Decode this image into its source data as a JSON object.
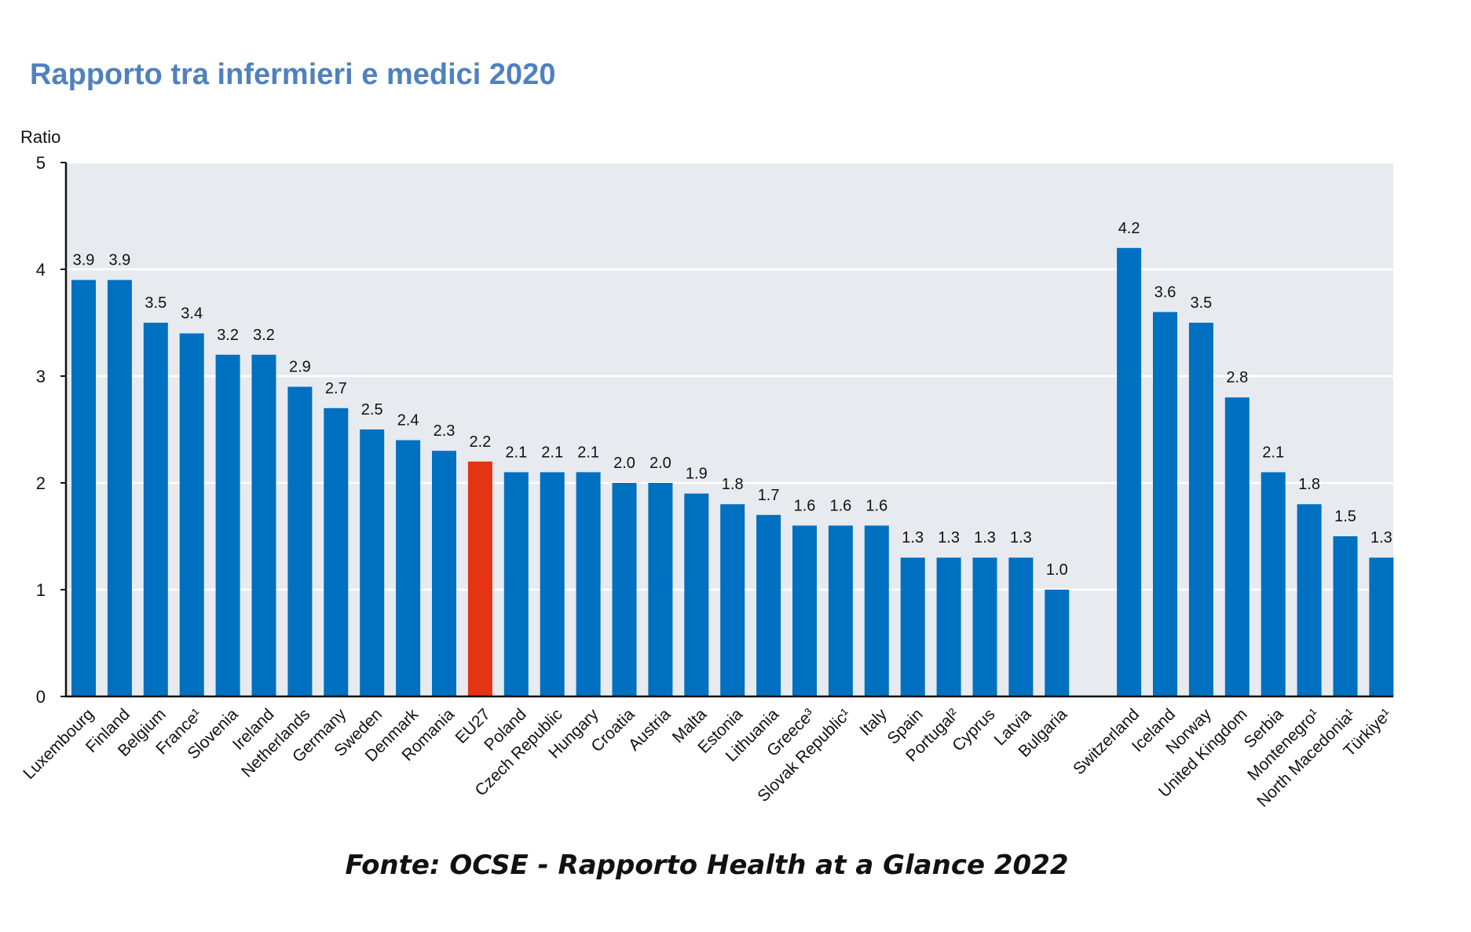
{
  "chart_data": {
    "type": "bar",
    "title": "Rapporto tra infermieri e medici 2020",
    "ylabel": "Ratio",
    "xlabel": "",
    "ylim": [
      0,
      5
    ],
    "yticks": [
      "0",
      "1",
      "2",
      "3",
      "4",
      "5"
    ],
    "grid": true,
    "groups": [
      {
        "categories": [
          "Luxembourg",
          "Finland",
          "Belgium",
          "France¹",
          "Slovenia",
          "Ireland",
          "Netherlands",
          "Germany",
          "Sweden",
          "Denmark",
          "Romania",
          "EU27",
          "Poland",
          "Czech Republic",
          "Hungary",
          "Croatia",
          "Austria",
          "Malta",
          "Estonia",
          "Lithuania",
          "Greece³",
          "Slovak Republic¹",
          "Italy",
          "Spain",
          "Portugal²",
          "Cyprus",
          "Latvia",
          "Bulgaria"
        ],
        "values": [
          3.9,
          3.9,
          3.5,
          3.4,
          3.2,
          3.2,
          2.9,
          2.7,
          2.5,
          2.4,
          2.3,
          2.2,
          2.1,
          2.1,
          2.1,
          2.0,
          2.0,
          1.9,
          1.8,
          1.7,
          1.6,
          1.6,
          1.6,
          1.3,
          1.3,
          1.3,
          1.3,
          1.0
        ],
        "value_labels": [
          "3.9",
          "3.9",
          "3.5",
          "3.4",
          "3.2",
          "3.2",
          "2.9",
          "2.7",
          "2.5",
          "2.4",
          "2.3",
          "2.2",
          "2.1",
          "2.1",
          "2.1",
          "2.0",
          "2.0",
          "1.9",
          "1.8",
          "1.7",
          "1.6",
          "1.6",
          "1.6",
          "1.3",
          "1.3",
          "1.3",
          "1.3",
          "1.0"
        ],
        "highlight": "EU27"
      },
      {
        "categories": [
          "Switzerland",
          "Iceland",
          "Norway",
          "United Kingdom",
          "Serbia",
          "Montenegro¹",
          "North Macedonia¹",
          "Türkiye¹"
        ],
        "values": [
          4.2,
          3.6,
          3.5,
          2.8,
          2.1,
          1.8,
          1.5,
          1.3
        ],
        "value_labels": [
          "4.2",
          "3.6",
          "3.5",
          "2.8",
          "2.1",
          "1.8",
          "1.5",
          "1.3"
        ]
      }
    ],
    "colors": {
      "bar": "#0070C0",
      "highlight": "#E63312",
      "plot_background": "#E7EAEE",
      "grid": "#FFFFFF",
      "title": "#4F81BD"
    }
  },
  "source": "Fonte: OCSE - Rapporto Health at a Glance 2022"
}
